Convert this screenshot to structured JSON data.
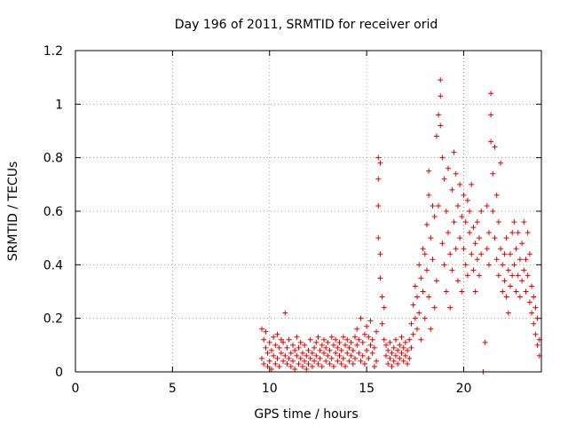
{
  "chart_data": {
    "type": "scatter",
    "title": "Day 196 of 2011, SRMTID for receiver orid",
    "xlabel": "GPS time / hours",
    "ylabel": "SRMTID / TECUs",
    "xlim": [
      0,
      24
    ],
    "ylim": [
      0,
      1.2
    ],
    "xticks": [
      0,
      5,
      10,
      15,
      20
    ],
    "xtick_labels": [
      "0",
      "5",
      "10",
      "15",
      "20"
    ],
    "yticks": [
      0,
      0.2,
      0.4,
      0.6,
      0.8,
      1,
      1.2
    ],
    "ytick_labels": [
      "0",
      "0.2",
      "0.4",
      "0.6",
      "0.8",
      "1",
      "1.2"
    ],
    "grid": true,
    "marker": "+",
    "color": "#e00000",
    "series": [
      {
        "name": "orid",
        "points": [
          [
            9.6,
            0.16
          ],
          [
            9.6,
            0.05
          ],
          [
            9.7,
            0.12
          ],
          [
            9.7,
            0.03
          ],
          [
            9.8,
            0.09
          ],
          [
            9.8,
            0.15
          ],
          [
            9.9,
            0.02
          ],
          [
            9.9,
            0.07
          ],
          [
            10.0,
            0.11
          ],
          [
            10.0,
            0.04
          ],
          [
            10.1,
            0.08
          ],
          [
            10.1,
            0.01
          ],
          [
            10.2,
            0.13
          ],
          [
            10.2,
            0.06
          ],
          [
            10.3,
            0.03
          ],
          [
            10.3,
            0.1
          ],
          [
            10.4,
            0.05
          ],
          [
            10.4,
            0.14
          ],
          [
            10.5,
            0.02
          ],
          [
            10.5,
            0.09
          ],
          [
            10.6,
            0.07
          ],
          [
            10.6,
            0.12
          ],
          [
            10.7,
            0.04
          ],
          [
            10.7,
            0.11
          ],
          [
            10.8,
            0.22
          ],
          [
            10.8,
            0.06
          ],
          [
            10.9,
            0.03
          ],
          [
            10.9,
            0.09
          ],
          [
            11.0,
            0.05
          ],
          [
            11.0,
            0.12
          ],
          [
            11.1,
            0.02
          ],
          [
            11.1,
            0.07
          ],
          [
            11.2,
            0.1
          ],
          [
            11.2,
            0.04
          ],
          [
            11.3,
            0.08
          ],
          [
            11.3,
            0.01
          ],
          [
            11.4,
            0.13
          ],
          [
            11.4,
            0.06
          ],
          [
            11.5,
            0.03
          ],
          [
            11.5,
            0.09
          ],
          [
            11.6,
            0.05
          ],
          [
            11.6,
            0.11
          ],
          [
            11.7,
            0.02
          ],
          [
            11.7,
            0.07
          ],
          [
            11.8,
            0.04
          ],
          [
            11.8,
            0.1
          ],
          [
            11.9,
            0.01
          ],
          [
            11.9,
            0.06
          ],
          [
            12.0,
            0.03
          ],
          [
            12.0,
            0.08
          ],
          [
            12.1,
            0.05
          ],
          [
            12.1,
            0.12
          ],
          [
            12.2,
            0.02
          ],
          [
            12.2,
            0.07
          ],
          [
            12.3,
            0.09
          ],
          [
            12.3,
            0.04
          ],
          [
            12.4,
            0.11
          ],
          [
            12.4,
            0.06
          ],
          [
            12.5,
            0.03
          ],
          [
            12.5,
            0.13
          ],
          [
            12.6,
            0.08
          ],
          [
            12.6,
            0.05
          ],
          [
            12.7,
            0.1
          ],
          [
            12.7,
            0.02
          ],
          [
            12.8,
            0.07
          ],
          [
            12.8,
            0.12
          ],
          [
            12.9,
            0.04
          ],
          [
            12.9,
            0.09
          ],
          [
            13.0,
            0.06
          ],
          [
            13.0,
            0.11
          ],
          [
            13.1,
            0.03
          ],
          [
            13.1,
            0.08
          ],
          [
            13.2,
            0.13
          ],
          [
            13.2,
            0.05
          ],
          [
            13.3,
            0.1
          ],
          [
            13.3,
            0.02
          ],
          [
            13.4,
            0.07
          ],
          [
            13.4,
            0.12
          ],
          [
            13.5,
            0.04
          ],
          [
            13.5,
            0.09
          ],
          [
            13.6,
            0.06
          ],
          [
            13.6,
            0.11
          ],
          [
            13.7,
            0.03
          ],
          [
            13.7,
            0.08
          ],
          [
            13.8,
            0.13
          ],
          [
            13.8,
            0.05
          ],
          [
            13.9,
            0.1
          ],
          [
            13.9,
            0.02
          ],
          [
            14.0,
            0.07
          ],
          [
            14.0,
            0.12
          ],
          [
            14.1,
            0.04
          ],
          [
            14.1,
            0.09
          ],
          [
            14.2,
            0.06
          ],
          [
            14.2,
            0.11
          ],
          [
            14.3,
            0.03
          ],
          [
            14.3,
            0.08
          ],
          [
            14.4,
            0.13
          ],
          [
            14.4,
            0.05
          ],
          [
            14.5,
            0.1
          ],
          [
            14.5,
            0.16
          ],
          [
            14.6,
            0.07
          ],
          [
            14.6,
            0.12
          ],
          [
            14.7,
            0.04
          ],
          [
            14.7,
            0.2
          ],
          [
            14.8,
            0.06
          ],
          [
            14.8,
            0.11
          ],
          [
            14.9,
            0.03
          ],
          [
            14.9,
            0.14
          ],
          [
            15.0,
            0.08
          ],
          [
            15.0,
            0.17
          ],
          [
            15.1,
            0.05
          ],
          [
            15.1,
            0.13
          ],
          [
            15.2,
            0.1
          ],
          [
            15.2,
            0.19
          ],
          [
            15.3,
            0.07
          ],
          [
            15.3,
            0.12
          ],
          [
            15.4,
            0.02
          ],
          [
            15.4,
            0.09
          ],
          [
            15.5,
            0.04
          ],
          [
            15.5,
            0.15
          ],
          [
            15.6,
            0.8
          ],
          [
            15.6,
            0.72
          ],
          [
            15.6,
            0.62
          ],
          [
            15.6,
            0.5
          ],
          [
            15.7,
            0.78
          ],
          [
            15.7,
            0.44
          ],
          [
            15.7,
            0.35
          ],
          [
            15.8,
            0.28
          ],
          [
            15.8,
            0.18
          ],
          [
            15.9,
            0.24
          ],
          [
            15.9,
            0.12
          ],
          [
            16.0,
            0.1
          ],
          [
            16.0,
            0.06
          ],
          [
            16.1,
            0.03
          ],
          [
            16.1,
            0.08
          ],
          [
            16.2,
            0.05
          ],
          [
            16.2,
            0.11
          ],
          [
            16.3,
            0.02
          ],
          [
            16.3,
            0.07
          ],
          [
            16.4,
            0.09
          ],
          [
            16.4,
            0.04
          ],
          [
            16.5,
            0.06
          ],
          [
            16.5,
            0.12
          ],
          [
            16.6,
            0.03
          ],
          [
            16.6,
            0.08
          ],
          [
            16.7,
            0.1
          ],
          [
            16.7,
            0.05
          ],
          [
            16.8,
            0.07
          ],
          [
            16.8,
            0.13
          ],
          [
            16.9,
            0.04
          ],
          [
            16.9,
            0.09
          ],
          [
            17.0,
            0.06
          ],
          [
            17.0,
            0.11
          ],
          [
            17.1,
            0.03
          ],
          [
            17.1,
            0.08
          ],
          [
            17.2,
            0.12
          ],
          [
            17.2,
            0.05
          ],
          [
            17.3,
            0.18
          ],
          [
            17.3,
            0.09
          ],
          [
            17.4,
            0.14
          ],
          [
            17.4,
            0.25
          ],
          [
            17.5,
            0.2
          ],
          [
            17.5,
            0.32
          ],
          [
            17.6,
            0.28
          ],
          [
            17.6,
            0.16
          ],
          [
            17.7,
            0.4
          ],
          [
            17.7,
            0.22
          ],
          [
            17.8,
            0.35
          ],
          [
            17.8,
            0.12
          ],
          [
            17.9,
            0.46
          ],
          [
            17.9,
            0.3
          ],
          [
            18.0,
            0.44
          ],
          [
            18.0,
            0.2
          ],
          [
            18.1,
            0.55
          ],
          [
            18.1,
            0.38
          ],
          [
            18.2,
            0.66
          ],
          [
            18.2,
            0.75
          ],
          [
            18.2,
            0.28
          ],
          [
            18.3,
            0.5
          ],
          [
            18.3,
            0.16
          ],
          [
            18.4,
            0.42
          ],
          [
            18.4,
            0.62
          ],
          [
            18.5,
            0.24
          ],
          [
            18.5,
            0.58
          ],
          [
            18.6,
            0.88
          ],
          [
            18.6,
            0.34
          ],
          [
            18.7,
            0.96
          ],
          [
            18.7,
            0.62
          ],
          [
            18.8,
            1.09
          ],
          [
            18.8,
            1.03
          ],
          [
            18.8,
            0.92
          ],
          [
            18.9,
            0.8
          ],
          [
            18.9,
            0.48
          ],
          [
            19.0,
            0.72
          ],
          [
            19.0,
            0.4
          ],
          [
            19.1,
            0.6
          ],
          [
            19.1,
            0.3
          ],
          [
            19.2,
            0.52
          ],
          [
            19.2,
            0.76
          ],
          [
            19.3,
            0.44
          ],
          [
            19.3,
            0.24
          ],
          [
            19.4,
            0.68
          ],
          [
            19.4,
            0.38
          ],
          [
            19.5,
            0.82
          ],
          [
            19.5,
            0.56
          ],
          [
            19.6,
            0.74
          ],
          [
            19.6,
            0.46
          ],
          [
            19.7,
            0.62
          ],
          [
            19.7,
            0.34
          ],
          [
            19.8,
            0.7
          ],
          [
            19.8,
            0.5
          ],
          [
            19.9,
            0.58
          ],
          [
            19.9,
            0.3
          ],
          [
            20.0,
            0.46
          ],
          [
            20.0,
            0.66
          ],
          [
            20.1,
            0.4
          ],
          [
            20.1,
            0.56
          ],
          [
            20.2,
            0.64
          ],
          [
            20.2,
            0.36
          ],
          [
            20.3,
            0.52
          ],
          [
            20.3,
            0.6
          ],
          [
            20.4,
            0.44
          ],
          [
            20.4,
            0.7
          ],
          [
            20.5,
            0.54
          ],
          [
            20.5,
            0.38
          ],
          [
            20.6,
            0.3
          ],
          [
            20.6,
            0.48
          ],
          [
            20.7,
            0.42
          ],
          [
            20.7,
            0.56
          ],
          [
            20.8,
            0.36
          ],
          [
            20.8,
            0.5
          ],
          [
            20.9,
            0.44
          ],
          [
            20.9,
            0.6
          ],
          [
            21.0,
            0.0
          ],
          [
            21.1,
            0.11
          ],
          [
            21.2,
            0.46
          ],
          [
            21.2,
            0.62
          ],
          [
            21.3,
            0.52
          ],
          [
            21.3,
            0.4
          ],
          [
            21.4,
            0.96
          ],
          [
            21.4,
            1.04
          ],
          [
            21.4,
            0.86
          ],
          [
            21.5,
            0.74
          ],
          [
            21.5,
            0.6
          ],
          [
            21.6,
            0.5
          ],
          [
            21.6,
            0.84
          ],
          [
            21.7,
            0.42
          ],
          [
            21.7,
            0.66
          ],
          [
            21.8,
            0.36
          ],
          [
            21.8,
            0.56
          ],
          [
            21.9,
            0.78
          ],
          [
            21.9,
            0.46
          ],
          [
            22.0,
            0.4
          ],
          [
            22.0,
            0.3
          ],
          [
            22.1,
            0.34
          ],
          [
            22.1,
            0.44
          ],
          [
            22.2,
            0.28
          ],
          [
            22.2,
            0.5
          ],
          [
            22.3,
            0.22
          ],
          [
            22.3,
            0.38
          ],
          [
            22.4,
            0.32
          ],
          [
            22.4,
            0.44
          ],
          [
            22.5,
            0.52
          ],
          [
            22.5,
            0.36
          ],
          [
            22.6,
            0.4
          ],
          [
            22.6,
            0.56
          ],
          [
            22.7,
            0.3
          ],
          [
            22.7,
            0.46
          ],
          [
            22.8,
            0.36
          ],
          [
            22.8,
            0.52
          ],
          [
            22.9,
            0.28
          ],
          [
            22.9,
            0.42
          ],
          [
            23.0,
            0.48
          ],
          [
            23.0,
            0.34
          ],
          [
            23.1,
            0.56
          ],
          [
            23.1,
            0.38
          ],
          [
            23.2,
            0.42
          ],
          [
            23.2,
            0.3
          ],
          [
            23.3,
            0.52
          ],
          [
            23.3,
            0.36
          ],
          [
            23.4,
            0.26
          ],
          [
            23.4,
            0.44
          ],
          [
            23.5,
            0.32
          ],
          [
            23.5,
            0.22
          ],
          [
            23.6,
            0.28
          ],
          [
            23.6,
            0.18
          ],
          [
            23.7,
            0.24
          ],
          [
            23.7,
            0.14
          ],
          [
            23.8,
            0.2
          ],
          [
            23.8,
            0.1
          ],
          [
            23.9,
            0.12
          ],
          [
            23.9,
            0.06
          ]
        ]
      }
    ]
  }
}
